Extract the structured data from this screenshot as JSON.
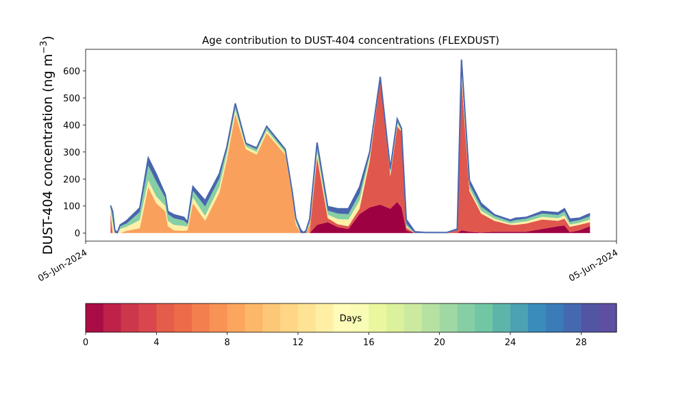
{
  "chart_data": [
    {
      "type": "area",
      "stacked": true,
      "title": "Age contribution to DUST-404 concentrations (FLEXDUST)",
      "ylabel": "DUST-404 concentration (ng m$^{-3}$)",
      "ylabel_main": "DUST-404 concentration (ng m",
      "ylabel_exponent": "−3",
      "ylabel_close": ")",
      "ylim": [
        -30,
        680
      ],
      "yticks": [
        0,
        100,
        200,
        300,
        400,
        500,
        600
      ],
      "xticklabels": [
        "05-Jun-2024",
        "05-Jun-2024"
      ],
      "x": [
        0.047,
        0.051,
        0.055,
        0.06,
        0.065,
        0.077,
        0.102,
        0.118,
        0.133,
        0.15,
        0.155,
        0.166,
        0.185,
        0.192,
        0.202,
        0.225,
        0.252,
        0.266,
        0.282,
        0.302,
        0.322,
        0.341,
        0.363,
        0.376,
        0.389,
        0.396,
        0.405,
        0.41,
        0.415,
        0.422,
        0.436,
        0.456,
        0.475,
        0.495,
        0.516,
        0.535,
        0.555,
        0.574,
        0.587,
        0.595,
        0.604,
        0.62,
        0.64,
        0.66,
        0.68,
        0.7,
        0.708,
        0.723,
        0.745,
        0.77,
        0.8,
        0.81,
        0.83,
        0.86,
        0.89,
        0.902,
        0.912,
        0.93,
        0.95
      ],
      "total": [
        102,
        80,
        10,
        2,
        30,
        45,
        93,
        278,
        218,
        142,
        80,
        68,
        58,
        40,
        172,
        120,
        220,
        318,
        480,
        332,
        315,
        395,
        342,
        310,
        155,
        55,
        12,
        2,
        8,
        52,
        335,
        98,
        90,
        90,
        170,
        300,
        578,
        238,
        422,
        388,
        50,
        5,
        2,
        2,
        2,
        15,
        642,
        195,
        110,
        68,
        48,
        55,
        58,
        80,
        75,
        90,
        52,
        55,
        72
      ],
      "series": [
        {
          "name": "0",
          "values": [
            0,
            0,
            0,
            0,
            0,
            0,
            0,
            0,
            0,
            0,
            0,
            0,
            0,
            0,
            0,
            0,
            0,
            0,
            0,
            0,
            0,
            0,
            0,
            0,
            0,
            0,
            0,
            0,
            0,
            0,
            30,
            40,
            22,
            15,
            70,
            95,
            105,
            90,
            115,
            95,
            10,
            0,
            0,
            0,
            0,
            0,
            10,
            5,
            2,
            5,
            5,
            5,
            5,
            15,
            25,
            28,
            3,
            10,
            25
          ]
        },
        {
          "name": "6",
          "values": [
            75,
            0,
            0,
            0,
            0,
            0,
            0,
            0,
            0,
            0,
            0,
            0,
            0,
            0,
            0,
            0,
            0,
            0,
            0,
            0,
            0,
            0,
            0,
            0,
            0,
            0,
            0,
            0,
            0,
            0,
            250,
            15,
            10,
            10,
            20,
            170,
            460,
            120,
            280,
            280,
            10,
            0,
            0,
            0,
            0,
            10,
            560,
            150,
            70,
            40,
            25,
            25,
            30,
            35,
            20,
            25,
            20,
            20,
            15
          ]
        },
        {
          "name": "12",
          "values": [
            0,
            0,
            0,
            0,
            0,
            8,
            18,
            170,
            110,
            80,
            25,
            10,
            8,
            10,
            110,
            45,
            150,
            270,
            440,
            310,
            290,
            370,
            320,
            290,
            140,
            30,
            0,
            0,
            0,
            30,
            0,
            0,
            0,
            0,
            0,
            0,
            0,
            0,
            0,
            0,
            0,
            0,
            0,
            0,
            0,
            0,
            0,
            0,
            0,
            0,
            0,
            0,
            0,
            0,
            0,
            0,
            0,
            0,
            0
          ]
        },
        {
          "name": "16",
          "values": [
            10,
            40,
            0,
            0,
            15,
            15,
            30,
            25,
            25,
            20,
            20,
            20,
            18,
            14,
            22,
            18,
            22,
            22,
            15,
            10,
            10,
            10,
            8,
            8,
            5,
            10,
            0,
            0,
            0,
            5,
            20,
            13,
            20,
            25,
            30,
            15,
            5,
            10,
            10,
            5,
            5,
            0,
            0,
            0,
            0,
            0,
            30,
            10,
            10,
            8,
            5,
            8,
            8,
            10,
            10,
            12,
            8,
            8,
            10
          ]
        },
        {
          "name": "24",
          "values": [
            10,
            30,
            0,
            0,
            10,
            12,
            30,
            55,
            55,
            30,
            25,
            25,
            20,
            10,
            25,
            35,
            30,
            18,
            15,
            8,
            10,
            10,
            8,
            8,
            6,
            10,
            0,
            0,
            0,
            10,
            20,
            15,
            20,
            20,
            25,
            10,
            5,
            8,
            10,
            5,
            10,
            0,
            0,
            0,
            0,
            0,
            20,
            15,
            15,
            10,
            8,
            10,
            10,
            12,
            12,
            15,
            10,
            10,
            12
          ]
        },
        {
          "name": "30",
          "values": [
            7,
            10,
            10,
            2,
            5,
            10,
            15,
            28,
            28,
            12,
            10,
            13,
            12,
            6,
            15,
            22,
            18,
            8,
            10,
            4,
            5,
            5,
            6,
            4,
            4,
            5,
            12,
            2,
            8,
            7,
            15,
            15,
            18,
            20,
            25,
            10,
            3,
            10,
            7,
            3,
            15,
            5,
            2,
            2,
            2,
            5,
            22,
            15,
            13,
            5,
            5,
            7,
            5,
            8,
            8,
            10,
            11,
            7,
            10
          ]
        }
      ],
      "colors": [
        "#9e0142",
        "#e0574d",
        "#f9a15c",
        "#fef0a7",
        "#85cfa5",
        "#4966ad"
      ],
      "colorbar": {
        "label": "Days",
        "range": [
          0,
          30
        ],
        "ticks": [
          0,
          4,
          8,
          12,
          16,
          20,
          24,
          28
        ],
        "colors": [
          "#a90d45",
          "#be2249",
          "#cd374b",
          "#da464d",
          "#e45c4a",
          "#ed6c48",
          "#f47f4e",
          "#f99255",
          "#fba55e",
          "#fdb768",
          "#fdc778",
          "#fed685",
          "#fee394",
          "#feefa4",
          "#fffbb8",
          "#f8fcb4",
          "#eaf79e",
          "#dbf19b",
          "#cbeaa0",
          "#b7e1a1",
          "#a0d8a4",
          "#86cfa5",
          "#71c6a4",
          "#5db5aa",
          "#4ca1b2",
          "#3a8cbb",
          "#3b7bb7",
          "#4569b0",
          "#5255a4",
          "#5e4fa2"
        ]
      }
    }
  ]
}
